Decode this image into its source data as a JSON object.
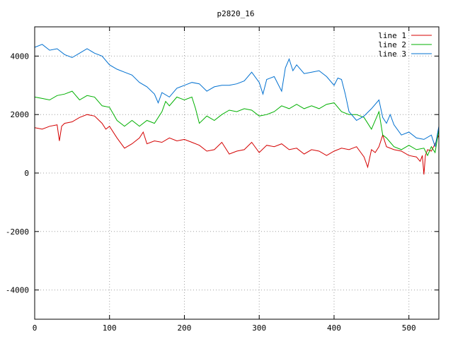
{
  "chart_data": {
    "type": "line",
    "title": "p2820_16",
    "xlabel": "",
    "ylabel": "",
    "xlim": [
      0,
      540
    ],
    "ylim": [
      -5000,
      5000
    ],
    "xticks": [
      0,
      100,
      200,
      300,
      400,
      500
    ],
    "yticks": [
      -4000,
      -2000,
      0,
      2000,
      4000
    ],
    "grid": true,
    "legend_position": "top-right",
    "series": [
      {
        "name": "line 1",
        "color": "#d40000",
        "x": [
          0,
          10,
          20,
          30,
          33,
          36,
          40,
          50,
          60,
          70,
          80,
          90,
          95,
          100,
          110,
          120,
          130,
          140,
          145,
          150,
          160,
          170,
          180,
          190,
          200,
          210,
          220,
          230,
          240,
          250,
          260,
          270,
          280,
          290,
          300,
          310,
          320,
          330,
          340,
          350,
          360,
          370,
          380,
          390,
          400,
          410,
          420,
          430,
          440,
          445,
          450,
          455,
          460,
          465,
          470,
          480,
          490,
          500,
          510,
          515,
          518,
          520,
          522,
          525,
          530,
          535,
          540
        ],
        "values": [
          1550,
          1500,
          1600,
          1650,
          1100,
          1600,
          1700,
          1750,
          1900,
          2000,
          1950,
          1700,
          1500,
          1600,
          1200,
          850,
          1000,
          1200,
          1400,
          1000,
          1100,
          1050,
          1200,
          1100,
          1150,
          1050,
          950,
          750,
          800,
          1050,
          650,
          750,
          800,
          1050,
          700,
          950,
          900,
          1000,
          800,
          850,
          650,
          800,
          750,
          600,
          750,
          850,
          800,
          900,
          550,
          200,
          800,
          700,
          900,
          1300,
          900,
          800,
          750,
          600,
          550,
          400,
          600,
          -50,
          600,
          800,
          750,
          1000,
          1300
        ]
      },
      {
        "name": "line 2",
        "color": "#00b000",
        "x": [
          0,
          10,
          20,
          30,
          40,
          50,
          60,
          70,
          80,
          90,
          100,
          110,
          120,
          130,
          140,
          150,
          160,
          170,
          175,
          180,
          190,
          200,
          210,
          215,
          220,
          230,
          240,
          250,
          260,
          270,
          280,
          290,
          300,
          310,
          320,
          330,
          340,
          350,
          360,
          370,
          380,
          390,
          400,
          410,
          420,
          430,
          440,
          450,
          460,
          465,
          470,
          480,
          490,
          500,
          510,
          520,
          525,
          530,
          535,
          540
        ],
        "values": [
          2600,
          2550,
          2500,
          2650,
          2700,
          2800,
          2500,
          2650,
          2600,
          2300,
          2250,
          1800,
          1600,
          1800,
          1600,
          1800,
          1700,
          2100,
          2450,
          2300,
          2600,
          2500,
          2600,
          2200,
          1700,
          1950,
          1800,
          2000,
          2150,
          2100,
          2200,
          2150,
          1950,
          2000,
          2100,
          2300,
          2200,
          2350,
          2200,
          2300,
          2200,
          2350,
          2400,
          2100,
          2000,
          2000,
          1900,
          1500,
          2100,
          1300,
          1200,
          900,
          800,
          950,
          800,
          850,
          600,
          900,
          700,
          1500
        ]
      },
      {
        "name": "line 3",
        "color": "#0070d0",
        "x": [
          0,
          10,
          20,
          30,
          40,
          50,
          60,
          70,
          80,
          90,
          100,
          110,
          120,
          130,
          140,
          150,
          160,
          165,
          170,
          180,
          190,
          200,
          210,
          220,
          230,
          240,
          250,
          260,
          270,
          280,
          290,
          300,
          305,
          310,
          320,
          330,
          335,
          340,
          345,
          350,
          360,
          370,
          380,
          390,
          400,
          405,
          410,
          415,
          420,
          430,
          440,
          450,
          460,
          465,
          470,
          475,
          480,
          490,
          500,
          510,
          520,
          530,
          535,
          540
        ],
        "values": [
          4300,
          4400,
          4200,
          4250,
          4050,
          3950,
          4100,
          4250,
          4100,
          4000,
          3700,
          3550,
          3450,
          3350,
          3100,
          2950,
          2700,
          2400,
          2750,
          2600,
          2900,
          3000,
          3100,
          3050,
          2800,
          2950,
          3000,
          3000,
          3050,
          3150,
          3450,
          3100,
          2700,
          3200,
          3300,
          2800,
          3600,
          3900,
          3500,
          3700,
          3400,
          3450,
          3500,
          3300,
          3000,
          3250,
          3200,
          2700,
          2100,
          1800,
          1950,
          2200,
          2500,
          1900,
          1700,
          2000,
          1650,
          1300,
          1400,
          1200,
          1150,
          1300,
          900,
          1600
        ]
      }
    ]
  }
}
